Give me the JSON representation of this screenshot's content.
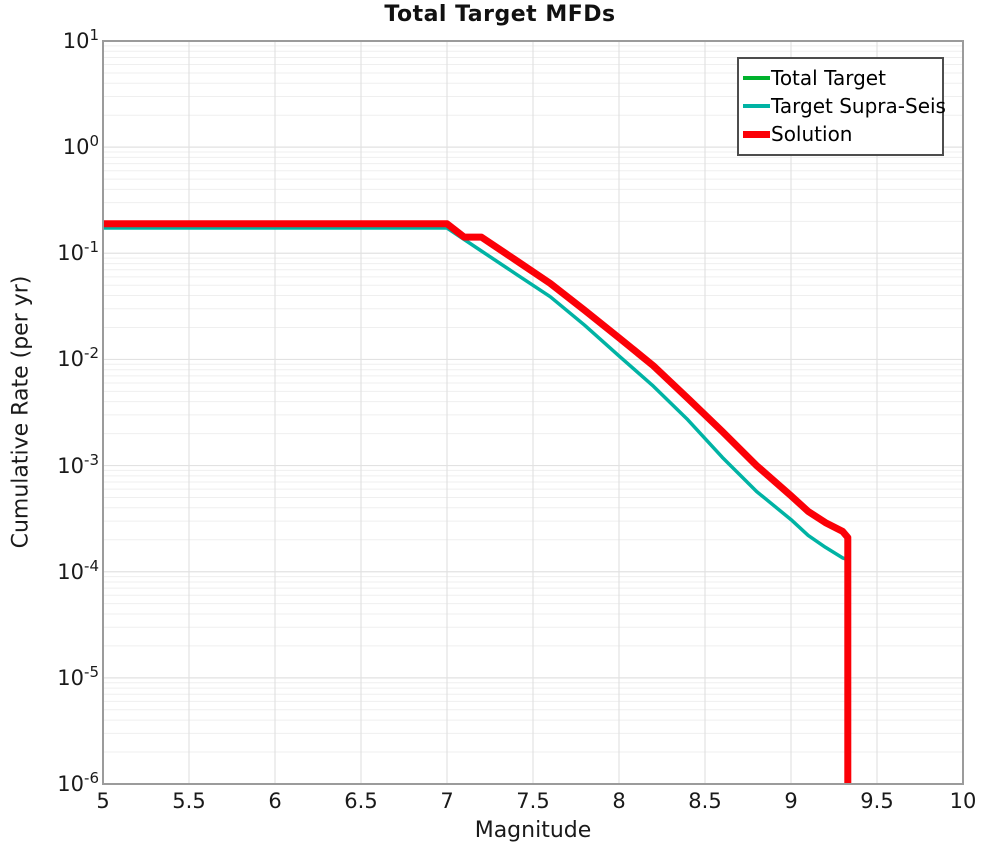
{
  "chart_data": {
    "type": "line",
    "title": "Total Target MFDs",
    "xlabel": "Magnitude",
    "ylabel": "Cumulative Rate (per yr)",
    "x_range": [
      5,
      10
    ],
    "y_scale": "log",
    "y_range": [
      1e-06,
      10
    ],
    "x_tick_labels": [
      "5",
      "5.5",
      "6",
      "6.5",
      "7",
      "7.5",
      "8",
      "8.5",
      "9",
      "9.5",
      "10"
    ],
    "y_tick_exponents": [
      1,
      0,
      -1,
      -2,
      -3,
      -4,
      -5,
      -6
    ],
    "grid": {
      "vertical_major": true,
      "horizontal_major": true,
      "horizontal_log_minor": true
    },
    "legend_position": "top-right",
    "series": [
      {
        "name": "Total Target",
        "color": "#00b22d",
        "width": 3.5,
        "points": [
          [
            5.0,
            0.19
          ],
          [
            7.0,
            0.19
          ],
          [
            7.1,
            0.142
          ],
          [
            7.2,
            0.142
          ],
          [
            7.4,
            0.086
          ],
          [
            7.6,
            0.052
          ],
          [
            7.8,
            0.029
          ],
          [
            8.0,
            0.016
          ],
          [
            8.2,
            0.0087
          ],
          [
            8.4,
            0.0043
          ],
          [
            8.6,
            0.0021
          ],
          [
            8.8,
            0.001
          ],
          [
            9.0,
            0.00052
          ],
          [
            9.1,
            0.00037
          ],
          [
            9.2,
            0.00029
          ],
          [
            9.3,
            0.00024
          ],
          [
            9.33,
            0.00021
          ],
          [
            9.33,
            1e-06
          ]
        ]
      },
      {
        "name": "Target Supra-Seis",
        "color": "#00b3a4",
        "width": 3.5,
        "points": [
          [
            5.0,
            0.173
          ],
          [
            7.0,
            0.173
          ],
          [
            7.2,
            0.105
          ],
          [
            7.4,
            0.064
          ],
          [
            7.6,
            0.039
          ],
          [
            7.8,
            0.021
          ],
          [
            8.0,
            0.0108
          ],
          [
            8.2,
            0.0056
          ],
          [
            8.4,
            0.0027
          ],
          [
            8.6,
            0.0012
          ],
          [
            8.8,
            0.00057
          ],
          [
            9.0,
            0.00031
          ],
          [
            9.1,
            0.00022
          ],
          [
            9.2,
            0.00017
          ],
          [
            9.3,
            0.000135
          ],
          [
            9.33,
            0.00013
          ],
          [
            9.33,
            1e-06
          ]
        ]
      },
      {
        "name": "Solution",
        "color": "#fb0007",
        "width": 7,
        "points": [
          [
            5.0,
            0.19
          ],
          [
            7.0,
            0.19
          ],
          [
            7.1,
            0.142
          ],
          [
            7.2,
            0.142
          ],
          [
            7.4,
            0.086
          ],
          [
            7.6,
            0.052
          ],
          [
            7.8,
            0.029
          ],
          [
            8.0,
            0.016
          ],
          [
            8.2,
            0.0087
          ],
          [
            8.4,
            0.0043
          ],
          [
            8.6,
            0.0021
          ],
          [
            8.8,
            0.001
          ],
          [
            9.0,
            0.00052
          ],
          [
            9.1,
            0.00037
          ],
          [
            9.2,
            0.00029
          ],
          [
            9.3,
            0.00024
          ],
          [
            9.33,
            0.00021
          ],
          [
            9.33,
            1e-06
          ]
        ]
      }
    ],
    "colors": {
      "grid_major": "#e2e2e2",
      "grid_minor": "#efefef",
      "plot_border": "#9b9b9b"
    }
  }
}
